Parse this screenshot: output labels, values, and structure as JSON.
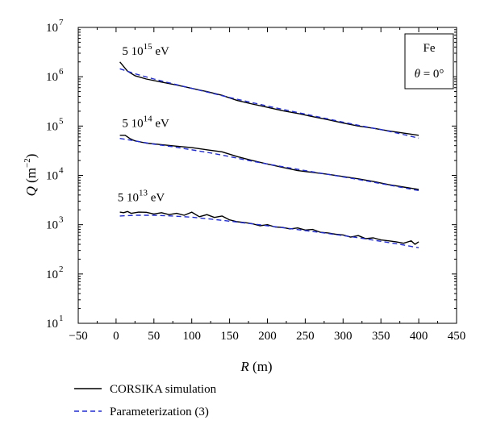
{
  "chart_data": {
    "type": "line",
    "title": "",
    "xlabel": "R (m)",
    "xlabel_parts": {
      "var": "R",
      "unit": " (m)"
    },
    "ylabel": "Q (m^-2)",
    "ylabel_parts": {
      "var": "Q",
      "unit_open": " (m",
      "exp": "−2",
      "unit_close": ")"
    },
    "xlim": [
      -50,
      450
    ],
    "xticks": [
      -50,
      0,
      50,
      100,
      150,
      200,
      250,
      300,
      350,
      400,
      450
    ],
    "ylim": [
      10,
      10000000
    ],
    "yscale": "log",
    "yticks": [
      {
        "value": 10,
        "base": "10",
        "exp": "1"
      },
      {
        "value": 100,
        "base": "10",
        "exp": "2"
      },
      {
        "value": 1000,
        "base": "10",
        "exp": "3"
      },
      {
        "value": 10000,
        "base": "10",
        "exp": "4"
      },
      {
        "value": 100000,
        "base": "10",
        "exp": "5"
      },
      {
        "value": 1000000,
        "base": "10",
        "exp": "6"
      },
      {
        "value": 10000000,
        "base": "10",
        "exp": "7"
      }
    ],
    "grid": false,
    "legend_position": "bottom-left outside",
    "legend": [
      {
        "label": "CORSIKA simulation",
        "style": "solid",
        "color": "#000000"
      },
      {
        "label": "Parameterization (3)",
        "style": "dashed",
        "color": "#1f2bd6"
      }
    ],
    "annotations": [
      {
        "base": "5 10",
        "exp": "15",
        "unit": " eV",
        "x": 8,
        "y": 2800000
      },
      {
        "base": "5 10",
        "exp": "14",
        "unit": " eV",
        "x": 8,
        "y": 95000
      },
      {
        "base": "5 10",
        "exp": "13",
        "unit": " eV",
        "x": 2,
        "y": 3000
      }
    ],
    "info_box": {
      "line1": "Fe",
      "line2_var": "θ",
      "line2_rest": " = 0°"
    },
    "series": [
      {
        "legend": "CORSIKA simulation",
        "energy": "5 10^15 eV",
        "color": "#000000",
        "dash": "none",
        "x": [
          5,
          15,
          25,
          40,
          60,
          80,
          100,
          120,
          140,
          160,
          180,
          200,
          220,
          240,
          260,
          280,
          300,
          320,
          340,
          360,
          380,
          400
        ],
        "y": [
          2000000,
          1300000,
          1050000,
          900000,
          780000,
          680000,
          580000,
          500000,
          420000,
          330000,
          280000,
          240000,
          205000,
          180000,
          155000,
          135000,
          115000,
          100000,
          90000,
          80000,
          72000,
          65000
        ]
      },
      {
        "legend": "Parameterization (3)",
        "energy": "5 10^15 eV",
        "color": "#1f2bd6",
        "dash": "6,4",
        "x": [
          5,
          25,
          50,
          75,
          100,
          125,
          150,
          175,
          200,
          225,
          250,
          275,
          300,
          325,
          350,
          375,
          400
        ],
        "y": [
          1450000,
          1150000,
          900000,
          720000,
          580000,
          470000,
          380000,
          310000,
          255000,
          210000,
          175000,
          145000,
          120000,
          100000,
          85000,
          70000,
          57000
        ]
      },
      {
        "legend": "CORSIKA simulation",
        "energy": "5 10^14 eV",
        "color": "#000000",
        "dash": "none",
        "x": [
          5,
          12,
          18,
          25,
          40,
          60,
          80,
          100,
          120,
          140,
          160,
          180,
          200,
          220,
          240,
          260,
          280,
          300,
          320,
          340,
          360,
          380,
          400
        ],
        "y": [
          65000,
          65000,
          56000,
          50000,
          45000,
          42000,
          39000,
          36500,
          33000,
          30000,
          24000,
          20000,
          17000,
          14500,
          12500,
          11500,
          10500,
          9500,
          8500,
          7500,
          6500,
          5800,
          5200
        ]
      },
      {
        "legend": "Parameterization (3)",
        "energy": "5 10^14 eV",
        "color": "#1f2bd6",
        "dash": "6,4",
        "x": [
          5,
          25,
          50,
          75,
          100,
          125,
          150,
          175,
          200,
          225,
          250,
          275,
          300,
          325,
          350,
          375,
          400
        ],
        "y": [
          56000,
          50000,
          43000,
          38000,
          33000,
          28500,
          24000,
          20000,
          17000,
          14500,
          12500,
          10800,
          9300,
          8000,
          6800,
          5800,
          4900
        ]
      },
      {
        "legend": "CORSIKA simulation",
        "energy": "5 10^13 eV",
        "color": "#000000",
        "dash": "none",
        "x": [
          5,
          10,
          15,
          20,
          30,
          40,
          50,
          60,
          70,
          80,
          90,
          100,
          110,
          120,
          130,
          140,
          150,
          160,
          170,
          180,
          190,
          200,
          210,
          220,
          230,
          240,
          250,
          260,
          270,
          280,
          290,
          300,
          310,
          320,
          330,
          340,
          350,
          360,
          370,
          380,
          390,
          395,
          400
        ],
        "y": [
          1800,
          1750,
          1850,
          1700,
          1800,
          1780,
          1650,
          1750,
          1600,
          1700,
          1550,
          1800,
          1450,
          1600,
          1400,
          1500,
          1250,
          1150,
          1100,
          1050,
          950,
          1000,
          900,
          880,
          820,
          860,
          780,
          800,
          700,
          680,
          640,
          620,
          560,
          600,
          520,
          540,
          490,
          470,
          450,
          420,
          470,
          400,
          450
        ]
      },
      {
        "legend": "Parameterization (3)",
        "energy": "5 10^13 eV",
        "color": "#1f2bd6",
        "dash": "6,4",
        "x": [
          5,
          25,
          50,
          75,
          100,
          125,
          150,
          175,
          200,
          225,
          250,
          275,
          300,
          325,
          350,
          375,
          400
        ],
        "y": [
          1500,
          1550,
          1550,
          1500,
          1420,
          1300,
          1180,
          1060,
          950,
          850,
          760,
          680,
          600,
          530,
          460,
          400,
          340
        ]
      }
    ]
  }
}
